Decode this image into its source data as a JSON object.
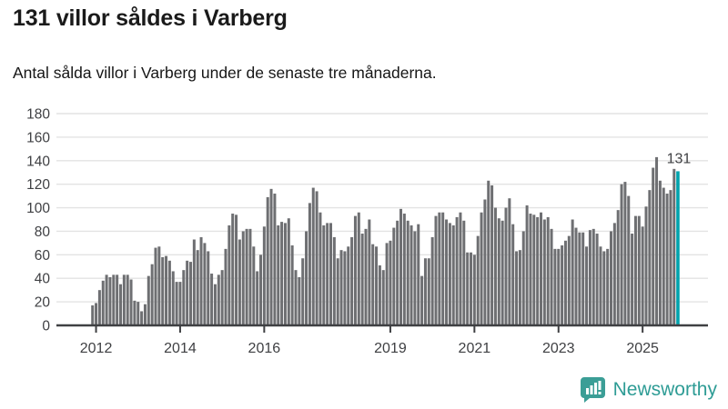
{
  "header": {
    "title": "131 villor såldes i Varberg",
    "subtitle": "Antal sålda villor i Varberg under de senaste tre månaderna."
  },
  "footer": {
    "brand": "Newsworthy",
    "brand_color": "#2E9C95",
    "brand_icon": "bar-chart-speech-bubble"
  },
  "chart_data": {
    "type": "bar",
    "title": "131 villor såldes i Varberg",
    "subtitle": "Antal sålda villor i Varberg under de senaste tre månaderna.",
    "ylabel": "",
    "xlabel": "",
    "ylim": [
      0,
      180
    ],
    "yticks": [
      0,
      20,
      40,
      60,
      80,
      100,
      120,
      140,
      160,
      180
    ],
    "grid": "horizontal",
    "x_tick_labels": [
      {
        "index": 1,
        "label": "2012"
      },
      {
        "index": 25,
        "label": "2014"
      },
      {
        "index": 49,
        "label": "2016"
      },
      {
        "index": 85,
        "label": "2019"
      },
      {
        "index": 109,
        "label": "2021"
      },
      {
        "index": 133,
        "label": "2023"
      },
      {
        "index": 157,
        "label": "2025"
      }
    ],
    "values": [
      17,
      19,
      30,
      38,
      43,
      41,
      43,
      43,
      35,
      43,
      43,
      39,
      21,
      20,
      12,
      18,
      42,
      52,
      66,
      67,
      58,
      59,
      55,
      46,
      37,
      37,
      47,
      55,
      54,
      73,
      64,
      75,
      70,
      63,
      44,
      35,
      43,
      47,
      65,
      85,
      95,
      94,
      73,
      80,
      82,
      82,
      67,
      46,
      60,
      84,
      109,
      116,
      112,
      85,
      88,
      87,
      91,
      68,
      47,
      41,
      57,
      80,
      104,
      117,
      114,
      96,
      85,
      87,
      87,
      75,
      57,
      64,
      63,
      67,
      75,
      93,
      96,
      78,
      82,
      90,
      69,
      67,
      51,
      47,
      70,
      72,
      83,
      89,
      99,
      95,
      89,
      85,
      80,
      86,
      42,
      57,
      57,
      75,
      93,
      96,
      96,
      90,
      87,
      85,
      92,
      96,
      89,
      62,
      62,
      60,
      76,
      96,
      107,
      123,
      119,
      100,
      91,
      89,
      100,
      108,
      86,
      63,
      64,
      80,
      102,
      95,
      94,
      92,
      96,
      90,
      92,
      82,
      65,
      65,
      68,
      72,
      76,
      90,
      83,
      79,
      79,
      67,
      81,
      82,
      78,
      67,
      63,
      65,
      80,
      87,
      98,
      120,
      122,
      110,
      78,
      93,
      93,
      84,
      101,
      115,
      134,
      143,
      123,
      117,
      112,
      115,
      133,
      131
    ],
    "highlight_index": 167,
    "highlight_value": 131,
    "annotation": "131",
    "bar_color": "#6E6F72",
    "highlight_color": "#00A3AD",
    "axis_color": "#3F4043",
    "gridline_color": "#E3E3E3",
    "legend": "none"
  }
}
